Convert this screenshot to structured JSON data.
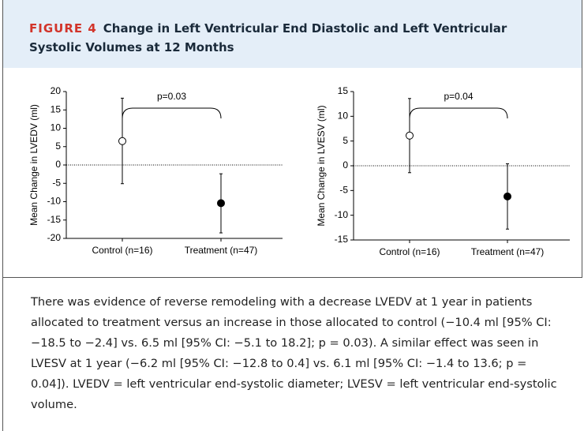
{
  "header": {
    "label": "FIGURE 4",
    "title": "Change in Left Ventricular End Diastolic and Left Ventricular Systolic Volumes at 12 Months"
  },
  "chart_data": [
    {
      "type": "errorbar",
      "y_label": "Mean Change in LVEDV (ml)",
      "categories": [
        "Control (n=16)",
        "Treatment (n=47)"
      ],
      "values": [
        6.5,
        -10.4
      ],
      "lower": [
        -5.1,
        -18.5
      ],
      "upper": [
        18.2,
        -2.4
      ],
      "colors": [
        "#ffffff",
        "#000000"
      ],
      "ylim": [
        -20,
        20
      ],
      "yticks": [
        -20,
        -15,
        -10,
        -5,
        0,
        5,
        10,
        15,
        20
      ],
      "annotation": "p=0.03"
    },
    {
      "type": "errorbar",
      "y_label": "Mean Change in LVESV (ml)",
      "categories": [
        "Control (n=16)",
        "Treatment (n=47)"
      ],
      "values": [
        6.1,
        -6.2
      ],
      "lower": [
        -1.4,
        -12.8
      ],
      "upper": [
        13.6,
        0.4
      ],
      "colors": [
        "#ffffff",
        "#000000"
      ],
      "ylim": [
        -15,
        15
      ],
      "yticks": [
        -15,
        -10,
        -5,
        0,
        5,
        10,
        15
      ],
      "annotation": "p=0.04"
    }
  ],
  "caption": "There was evidence of reverse remodeling with a decrease LVEDV at 1 year in patients allocated to treatment versus an increase in those allocated to control (−10.4 ml [95% CI: −18.5 to −2.4] vs. 6.5 ml [95% CI: −5.1 to 18.2]; p = 0.03). A similar effect was seen in LVESV at 1 year (−6.2 ml [95% CI: −12.8 to 0.4] vs. 6.1 ml [95% CI: −1.4 to 13.6; p = 0.04]). LVEDV = left ventricular end-systolic diameter; LVESV = left ventricular end-systolic volume."
}
